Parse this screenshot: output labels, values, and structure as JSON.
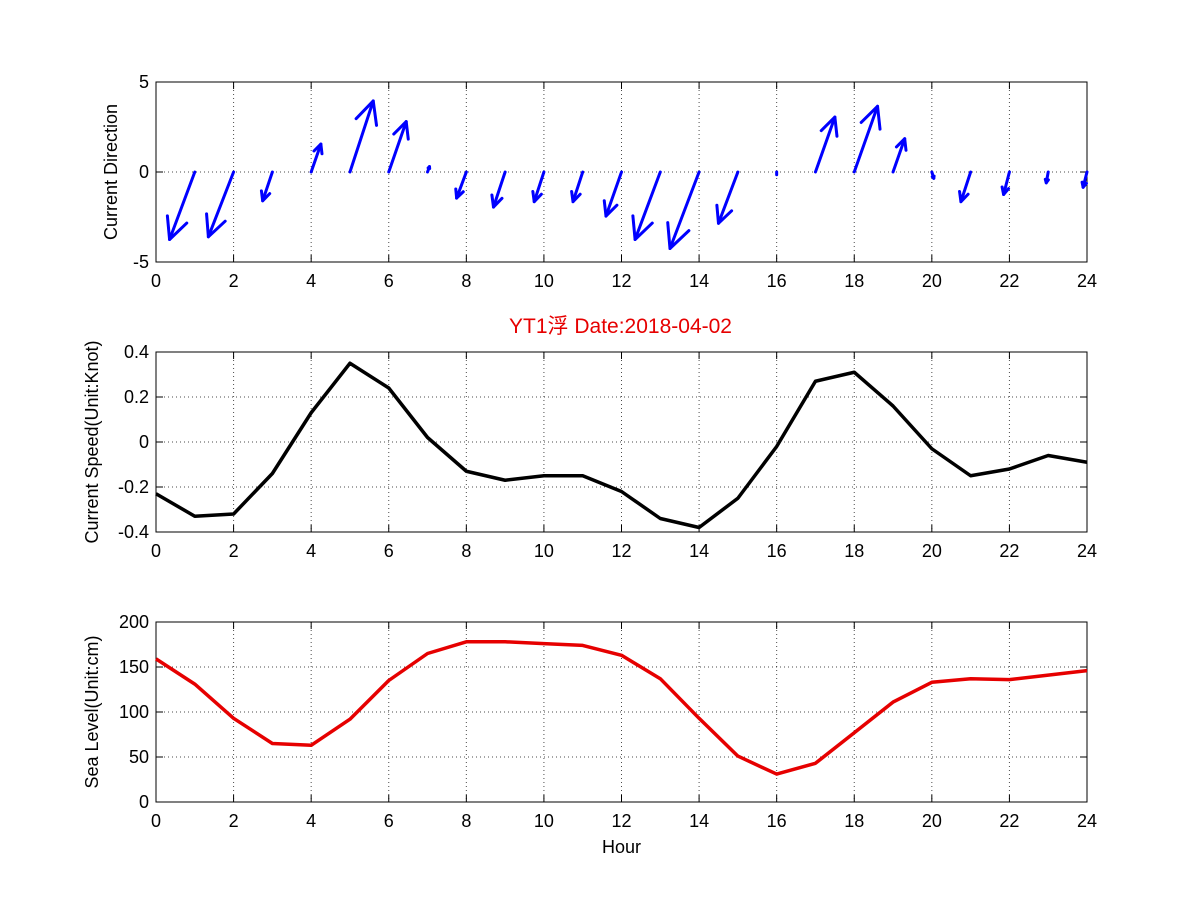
{
  "chart_data": [
    {
      "type": "quiver",
      "ylabel": "Current Direction",
      "xlabel": "",
      "xlim": [
        0,
        24
      ],
      "ylim": [
        -5,
        5
      ],
      "x_ticks": [
        "0",
        "2",
        "4",
        "6",
        "8",
        "10",
        "12",
        "14",
        "16",
        "18",
        "20",
        "22",
        "24"
      ],
      "y_ticks": [
        "-5",
        "0",
        "5"
      ],
      "grid": true,
      "color": "#0000ff",
      "vectors": [
        {
          "x": 1,
          "u": -0.65,
          "v": -3.75
        },
        {
          "x": 2,
          "u": -0.65,
          "v": -3.6
        },
        {
          "x": 3,
          "u": -0.25,
          "v": -1.6
        },
        {
          "x": 4,
          "u": 0.25,
          "v": 1.55
        },
        {
          "x": 5,
          "u": 0.6,
          "v": 3.95
        },
        {
          "x": 6,
          "u": 0.45,
          "v": 2.8
        },
        {
          "x": 7,
          "u": 0.05,
          "v": 0.3
        },
        {
          "x": 8,
          "u": -0.25,
          "v": -1.45
        },
        {
          "x": 9,
          "u": -0.3,
          "v": -1.95
        },
        {
          "x": 10,
          "u": -0.25,
          "v": -1.65
        },
        {
          "x": 11,
          "u": -0.25,
          "v": -1.65
        },
        {
          "x": 12,
          "u": -0.4,
          "v": -2.45
        },
        {
          "x": 13,
          "u": -0.65,
          "v": -3.75
        },
        {
          "x": 14,
          "u": -0.75,
          "v": -4.25
        },
        {
          "x": 15,
          "u": -0.5,
          "v": -2.85
        },
        {
          "x": 16,
          "u": 0.0,
          "v": -0.15
        },
        {
          "x": 17,
          "u": 0.5,
          "v": 3.05
        },
        {
          "x": 18,
          "u": 0.6,
          "v": 3.65
        },
        {
          "x": 19,
          "u": 0.3,
          "v": 1.85
        },
        {
          "x": 20,
          "u": 0.05,
          "v": -0.35
        },
        {
          "x": 21,
          "u": -0.25,
          "v": -1.65
        },
        {
          "x": 22,
          "u": -0.15,
          "v": -1.25
        },
        {
          "x": 23,
          "u": -0.05,
          "v": -0.6
        },
        {
          "x": 24,
          "u": -0.1,
          "v": -0.85
        }
      ]
    },
    {
      "type": "line",
      "title": "YT1浮    Date:2018-04-02",
      "ylabel": "Current Speed(Unit:Knot)",
      "xlabel": "",
      "xlim": [
        0,
        24
      ],
      "ylim": [
        -0.4,
        0.4
      ],
      "x_ticks": [
        "0",
        "2",
        "4",
        "6",
        "8",
        "10",
        "12",
        "14",
        "16",
        "18",
        "20",
        "22",
        "24"
      ],
      "y_ticks": [
        "-0.4",
        "-0.2",
        "0",
        "0.2",
        "0.4"
      ],
      "grid": true,
      "color": "#000000",
      "title_color": "#e60000",
      "x": [
        0,
        1,
        2,
        3,
        4,
        5,
        6,
        7,
        8,
        9,
        10,
        11,
        12,
        13,
        14,
        15,
        16,
        17,
        18,
        19,
        20,
        21,
        22,
        23,
        24
      ],
      "y": [
        -0.23,
        -0.33,
        -0.32,
        -0.14,
        0.13,
        0.35,
        0.24,
        0.02,
        -0.13,
        -0.17,
        -0.15,
        -0.15,
        -0.22,
        -0.34,
        -0.38,
        -0.25,
        -0.02,
        0.27,
        0.31,
        0.16,
        -0.03,
        -0.15,
        -0.12,
        -0.06,
        -0.09
      ]
    },
    {
      "type": "line",
      "ylabel": "Sea Level(Unit:cm)",
      "xlabel": "Hour",
      "xlim": [
        0,
        24
      ],
      "ylim": [
        0,
        200
      ],
      "x_ticks": [
        "0",
        "2",
        "4",
        "6",
        "8",
        "10",
        "12",
        "14",
        "16",
        "18",
        "20",
        "22",
        "24"
      ],
      "y_ticks": [
        "0",
        "50",
        "100",
        "150",
        "200"
      ],
      "grid": true,
      "color": "#e60000",
      "x": [
        0,
        1,
        2,
        3,
        4,
        5,
        6,
        7,
        8,
        9,
        10,
        11,
        12,
        13,
        14,
        15,
        16,
        17,
        18,
        19,
        20,
        21,
        22,
        23,
        24
      ],
      "y": [
        159,
        131,
        93,
        65,
        63,
        92,
        135,
        165,
        178,
        178,
        176,
        174,
        163,
        137,
        93,
        51,
        31,
        43,
        77,
        111,
        133,
        137,
        136,
        141,
        146
      ]
    }
  ]
}
